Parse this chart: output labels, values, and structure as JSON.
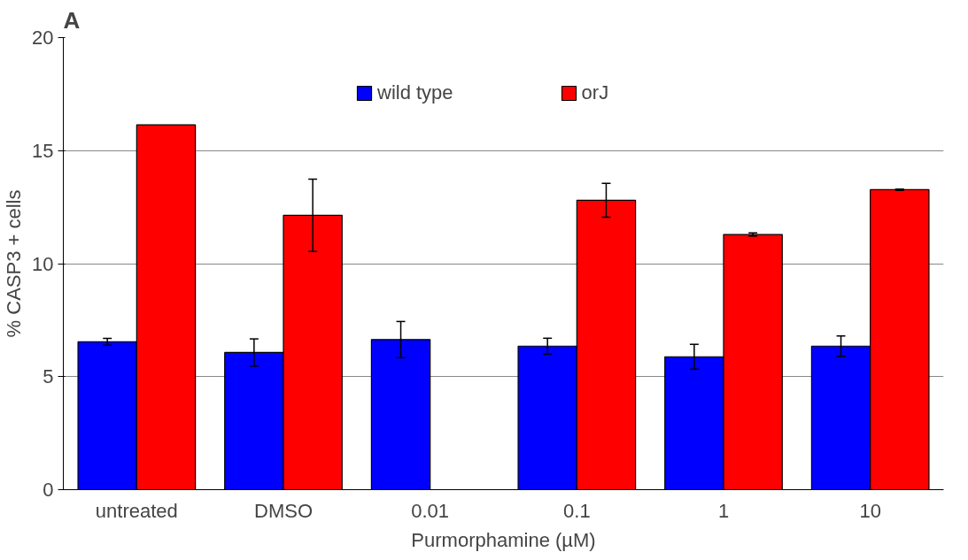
{
  "chart_data": {
    "type": "bar",
    "title": "A",
    "xlabel": "Purmorphamine (µM)",
    "ylabel": "% CASP3 + cells",
    "categories": [
      "untreated",
      "DMSO",
      "0.01",
      "0.1",
      "1",
      "10"
    ],
    "series": [
      {
        "name": "wild type",
        "color": "#0000ff",
        "values": [
          6.54,
          6.07,
          6.64,
          6.35,
          5.88,
          6.35
        ],
        "errors": [
          0.15,
          0.6,
          0.8,
          0.35,
          0.55,
          0.45
        ]
      },
      {
        "name": "orJ",
        "color": "#ff0000",
        "values": [
          16.14,
          12.14,
          null,
          12.8,
          11.29,
          13.27
        ],
        "errors": [
          null,
          1.6,
          null,
          0.75,
          0.07,
          0.03
        ]
      }
    ],
    "ylim": [
      0,
      20
    ],
    "yticks": [
      0,
      5,
      10,
      15,
      20
    ],
    "grid": "y",
    "legend": "top"
  }
}
